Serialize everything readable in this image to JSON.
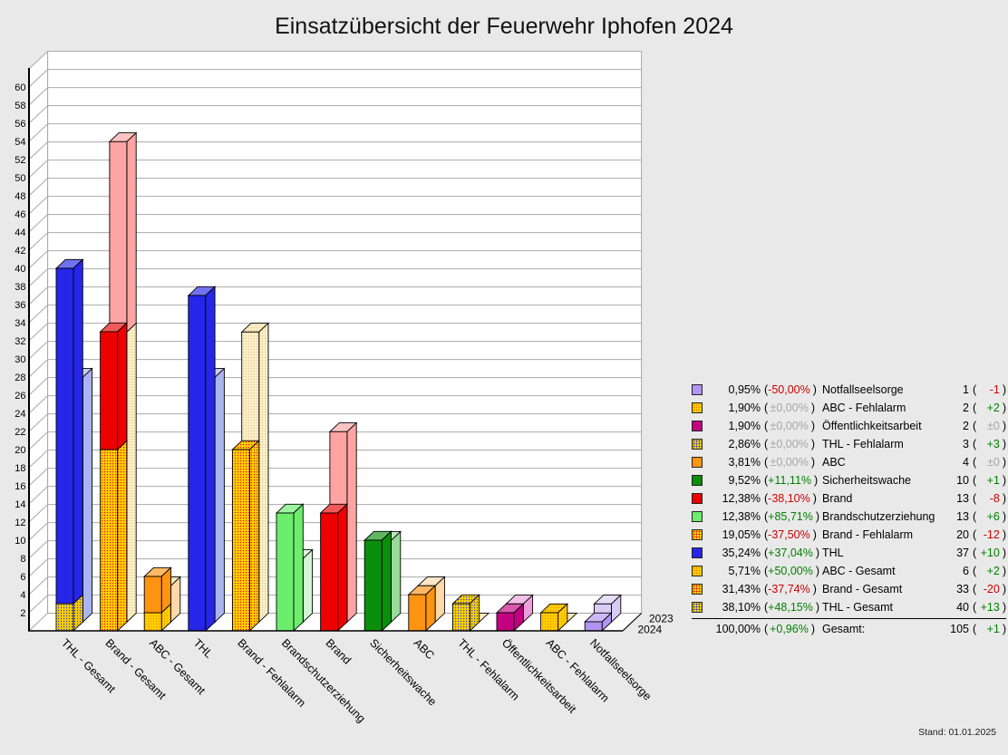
{
  "title": "Einsatzübersicht der Feuerwehr Iphofen 2024",
  "footer": {
    "stand_label": "Stand: 01.01.2025"
  },
  "colors": {
    "page_bg": "#e9e9e9",
    "plot_bg": "#ffffff",
    "grid": "#a9a9a9",
    "axis": "#000000",
    "ui": {
      "positive": "#008000",
      "negative": "#cc0000",
      "neutral": "#a6a6a6"
    },
    "solid": {
      "thl": "#2626e8",
      "thl_2023": "#aab4f0",
      "brand": "#ee0000",
      "brand_2023": "#ffa3a3",
      "abc": "#ff9412",
      "abc_2023": "#ffd9a8",
      "sich": "#0a8f0a",
      "sich_2023": "#9ad99a",
      "bse": "#6cee6c",
      "bse_2023": "#d2f5d2",
      "oeff": "#c40082",
      "oeff_2023": "#ee9ed9",
      "notf": "#b093f2",
      "notf_2023": "#d8cbf6"
    },
    "patterns": {
      "thl_f": {
        "bg": "#ffd400",
        "dot": "#2a3bc8"
      },
      "brand_f": {
        "bg": "#ffd400",
        "dot": "#e81111"
      },
      "abc_f": {
        "bg": "#ffd400",
        "dot": "#ff8800"
      },
      "fehlalarm_2023": {
        "bg": "#fbf2cd",
        "dot": "#eec382"
      }
    }
  },
  "legend": {
    "rows": [
      {
        "swatch": "notf",
        "pct": "0,95%",
        "pct_change": "-50,00%",
        "label": "Notfallseelsorge",
        "count": "1",
        "count_change": "-1"
      },
      {
        "swatch": "abc_f",
        "pct": "1,90%",
        "pct_change": "±0,00%",
        "label": "ABC - Fehlalarm",
        "count": "2",
        "count_change": "+2"
      },
      {
        "swatch": "oeff",
        "pct": "1,90%",
        "pct_change": "±0,00%",
        "label": "Öffentlichkeitsarbeit",
        "count": "2",
        "count_change": "±0"
      },
      {
        "swatch": "thl_f",
        "pct": "2,86%",
        "pct_change": "±0,00%",
        "label": "THL - Fehlalarm",
        "count": "3",
        "count_change": "+3"
      },
      {
        "swatch": "abc",
        "pct": "3,81%",
        "pct_change": "±0,00%",
        "label": "ABC",
        "count": "4",
        "count_change": "±0"
      },
      {
        "swatch": "sich",
        "pct": "9,52%",
        "pct_change": "+11,11%",
        "label": "Sicherheitswache",
        "count": "10",
        "count_change": "+1"
      },
      {
        "swatch": "brand",
        "pct": "12,38%",
        "pct_change": "-38,10%",
        "label": "Brand",
        "count": "13",
        "count_change": "-8"
      },
      {
        "swatch": "bse",
        "pct": "12,38%",
        "pct_change": "+85,71%",
        "label": "Brandschutzerziehung",
        "count": "13",
        "count_change": "+6"
      },
      {
        "swatch": "brand_f",
        "pct": "19,05%",
        "pct_change": "-37,50%",
        "label": "Brand - Fehlalarm",
        "count": "20",
        "count_change": "-12"
      },
      {
        "swatch": "thl",
        "pct": "35,24%",
        "pct_change": "+37,04%",
        "label": "THL",
        "count": "37",
        "count_change": "+10"
      },
      {
        "swatch": "abc_f",
        "pct": "5,71%",
        "pct_change": "+50,00%",
        "label": "ABC - Gesamt",
        "count": "6",
        "count_change": "+2"
      },
      {
        "swatch": "brand_f",
        "pct": "31,43%",
        "pct_change": "-37,74%",
        "label": "Brand - Gesamt",
        "count": "33",
        "count_change": "-20"
      },
      {
        "swatch": "thl_f",
        "pct": "38,10%",
        "pct_change": "+48,15%",
        "label": "THL - Gesamt",
        "count": "40",
        "count_change": "+13"
      }
    ],
    "total": {
      "pct": "100,00%",
      "pct_change": "+0,96%",
      "label": "Gesamt:",
      "count": "105",
      "count_change": "+1"
    }
  },
  "chart_data": {
    "type": "bar",
    "projection": "3d",
    "title": "Einsatzübersicht der Feuerwehr Iphofen 2024",
    "xlabel": "",
    "ylabel": "",
    "ylim": [
      0,
      62
    ],
    "ytick_step": 2,
    "grid": true,
    "legend_position": "right",
    "series_names": {
      "front": "2024",
      "back": "2023"
    },
    "categories": [
      "THL - Gesamt",
      "Brand - Gesamt",
      "ABC - Gesamt",
      "THL",
      "Brand - Fehlalarm",
      "Brandschutzerziehung",
      "Brand",
      "Sicherheitswache",
      "ABC",
      "THL - Fehlalarm",
      "Öffentlichkeitsarbeit",
      "ABC - Fehlalarm",
      "Notfallseelsorge"
    ],
    "bars": [
      {
        "category": "THL - Gesamt",
        "total_2024": 40,
        "total_2023": 27,
        "front_2024": [
          {
            "label": "THL - Fehlalarm",
            "value": 3,
            "style": "thl_f"
          },
          {
            "label": "THL",
            "value": 37,
            "style": "thl"
          }
        ],
        "back_2023": [
          {
            "label": "THL",
            "value": 27,
            "style": "thl_2023"
          }
        ]
      },
      {
        "category": "Brand - Gesamt",
        "total_2024": 33,
        "total_2023": 53,
        "front_2024": [
          {
            "label": "Brand - Fehlalarm",
            "value": 20,
            "style": "brand_f"
          },
          {
            "label": "Brand",
            "value": 13,
            "style": "brand"
          }
        ],
        "back_2023": [
          {
            "label": "Brand - Fehlalarm",
            "value": 32,
            "style": "fehlalarm_2023"
          },
          {
            "label": "Brand",
            "value": 21,
            "style": "brand_2023"
          }
        ]
      },
      {
        "category": "ABC - Gesamt",
        "total_2024": 6,
        "total_2023": 4,
        "front_2024": [
          {
            "label": "ABC - Fehlalarm",
            "value": 2,
            "style": "abc_f"
          },
          {
            "label": "ABC",
            "value": 4,
            "style": "abc"
          }
        ],
        "back_2023": [
          {
            "label": "ABC",
            "value": 4,
            "style": "abc_2023"
          }
        ]
      },
      {
        "category": "THL",
        "total_2024": 37,
        "total_2023": 27,
        "front_2024": [
          {
            "label": "THL",
            "value": 37,
            "style": "thl"
          }
        ],
        "back_2023": [
          {
            "label": "THL",
            "value": 27,
            "style": "thl_2023"
          }
        ]
      },
      {
        "category": "Brand - Fehlalarm",
        "total_2024": 20,
        "total_2023": 32,
        "front_2024": [
          {
            "label": "Brand - Fehlalarm",
            "value": 20,
            "style": "brand_f"
          }
        ],
        "back_2023": [
          {
            "label": "Brand - Fehlalarm",
            "value": 32,
            "style": "fehlalarm_2023"
          }
        ]
      },
      {
        "category": "Brandschutzerziehung",
        "total_2024": 13,
        "total_2023": 7,
        "front_2024": [
          {
            "label": "Brandschutzerziehung",
            "value": 13,
            "style": "bse"
          }
        ],
        "back_2023": [
          {
            "label": "Brandschutzerziehung",
            "value": 7,
            "style": "bse_2023"
          }
        ]
      },
      {
        "category": "Brand",
        "total_2024": 13,
        "total_2023": 21,
        "front_2024": [
          {
            "label": "Brand",
            "value": 13,
            "style": "brand"
          }
        ],
        "back_2023": [
          {
            "label": "Brand",
            "value": 21,
            "style": "brand_2023"
          }
        ]
      },
      {
        "category": "Sicherheitswache",
        "total_2024": 10,
        "total_2023": 9,
        "front_2024": [
          {
            "label": "Sicherheitswache",
            "value": 10,
            "style": "sich"
          }
        ],
        "back_2023": [
          {
            "label": "Sicherheitswache",
            "value": 9,
            "style": "sich_2023"
          }
        ]
      },
      {
        "category": "ABC",
        "total_2024": 4,
        "total_2023": 4,
        "front_2024": [
          {
            "label": "ABC",
            "value": 4,
            "style": "abc"
          }
        ],
        "back_2023": [
          {
            "label": "ABC",
            "value": 4,
            "style": "abc_2023"
          }
        ]
      },
      {
        "category": "THL - Fehlalarm",
        "total_2024": 3,
        "total_2023": 0,
        "front_2024": [
          {
            "label": "THL - Fehlalarm",
            "value": 3,
            "style": "thl_f"
          }
        ],
        "back_2023": [
          {
            "label": "THL - Fehlalarm",
            "value": 0,
            "style": "fehlalarm_2023"
          }
        ]
      },
      {
        "category": "Öffentlichkeitsarbeit",
        "total_2024": 2,
        "total_2023": 2,
        "front_2024": [
          {
            "label": "Öffentlichkeitsarbeit",
            "value": 2,
            "style": "oeff"
          }
        ],
        "back_2023": [
          {
            "label": "Öffentlichkeitsarbeit",
            "value": 2,
            "style": "oeff_2023"
          }
        ]
      },
      {
        "category": "ABC - Fehlalarm",
        "total_2024": 2,
        "total_2023": 0,
        "front_2024": [
          {
            "label": "ABC - Fehlalarm",
            "value": 2,
            "style": "abc_f"
          }
        ],
        "back_2023": [
          {
            "label": "ABC - Fehlalarm",
            "value": 0,
            "style": "fehlalarm_2023"
          }
        ]
      },
      {
        "category": "Notfallseelsorge",
        "total_2024": 1,
        "total_2023": 2,
        "front_2024": [
          {
            "label": "Notfallseelsorge",
            "value": 1,
            "style": "notf"
          }
        ],
        "back_2023": [
          {
            "label": "Notfallseelsorge",
            "value": 2,
            "style": "notf_2023"
          }
        ]
      }
    ]
  }
}
